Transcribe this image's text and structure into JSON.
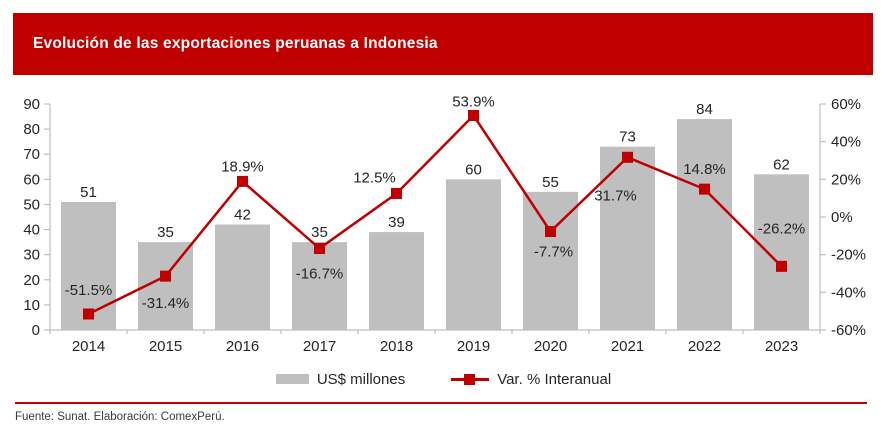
{
  "header": {
    "title": "Evolución de las exportaciones peruanas a Indonesia",
    "background_color": "#C00000",
    "text_color": "#FFFFFF"
  },
  "chart_data": {
    "type": "bar",
    "subtype": "combo-bar-line",
    "categories": [
      "2014",
      "2015",
      "2016",
      "2017",
      "2018",
      "2019",
      "2020",
      "2021",
      "2022",
      "2023"
    ],
    "series": [
      {
        "name": "US$ millones",
        "type": "bar",
        "axis": "left",
        "color": "#BFBFBF",
        "values": [
          51,
          35,
          42,
          35,
          39,
          60,
          55,
          73,
          84,
          62
        ],
        "value_labels": [
          "51",
          "35",
          "42",
          "35",
          "39",
          "60",
          "55",
          "73",
          "84",
          "62"
        ]
      },
      {
        "name": "Var. % Interanual",
        "type": "line",
        "axis": "right",
        "color": "#C00000",
        "marker": "square",
        "values": [
          -51.5,
          -31.4,
          18.9,
          -16.7,
          12.5,
          53.9,
          -7.7,
          31.7,
          14.8,
          -26.2
        ],
        "value_labels": [
          "-51.5%",
          "-31.4%",
          "18.9%",
          "-16.7%",
          "12.5%",
          "53.9%",
          "-7.7%",
          "31.7%",
          "14.8%",
          "-26.2%"
        ],
        "label_offsets": [
          {
            "dx": 0,
            "dy": -24
          },
          {
            "dx": 0,
            "dy": 27
          },
          {
            "dx": 0,
            "dy": -15
          },
          {
            "dx": 0,
            "dy": 25
          },
          {
            "dx": -22,
            "dy": -16
          },
          {
            "dx": 0,
            "dy": -14
          },
          {
            "dx": 3,
            "dy": 20
          },
          {
            "dx": -12,
            "dy": 38
          },
          {
            "dx": 0,
            "dy": -20
          },
          {
            "dx": 0,
            "dy": -38
          }
        ]
      }
    ],
    "left_axis": {
      "min": 0,
      "max": 90,
      "step": 10,
      "ticks": [
        "0",
        "10",
        "20",
        "30",
        "40",
        "50",
        "60",
        "70",
        "80",
        "90"
      ]
    },
    "right_axis": {
      "min": -60,
      "max": 60,
      "step": 20,
      "ticks": [
        "-60%",
        "-40%",
        "-20%",
        "0%",
        "20%",
        "40%",
        "60%"
      ]
    },
    "axis_color": "#BFBFBF",
    "label_color": "#262626",
    "grid": false,
    "legend_position": "bottom",
    "title": "Evolución de las exportaciones peruanas a Indonesia",
    "xlabel": "",
    "ylabel": ""
  },
  "footer": {
    "source": "Fuente: Sunat. Elaboración: ComexPerú.",
    "divider_color": "#C00000"
  }
}
